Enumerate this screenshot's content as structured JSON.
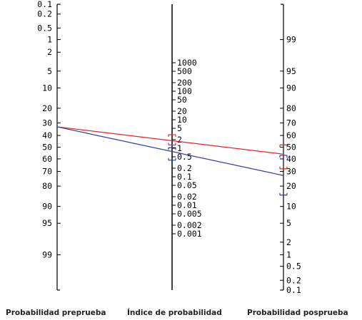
{
  "axes": {
    "pretest": {
      "title": "Probabilidad preprueba",
      "ticks": [
        "0.1",
        "0.2",
        "0.5",
        "1",
        "2",
        "5",
        "10",
        "20",
        "30",
        "40",
        "50",
        "60",
        "70",
        "80",
        "90",
        "95",
        "99"
      ]
    },
    "likelihood": {
      "title": "Índice de probabilidad",
      "ticks": [
        "1000",
        "500",
        "200",
        "100",
        "50",
        "20",
        "10",
        "5",
        "2",
        "1",
        "0.5",
        "0.2",
        "0.1",
        "0.05",
        "0.02",
        "0.01",
        "0.005",
        "0.002",
        "0.001"
      ]
    },
    "posttest": {
      "title": "Probabilidad posprueba",
      "ticks": [
        "99",
        "95",
        "90",
        "80",
        "70",
        "60",
        "50",
        "40",
        "30",
        "20",
        "10",
        "5",
        "2",
        "1",
        "0.5",
        "0.2",
        "0.1"
      ]
    }
  },
  "lines": [
    {
      "color": "#e8202a",
      "pretest_probability": 33,
      "likelihood_ratio": 2.2,
      "likelihood_ci": [
        1.3,
        3.0
      ],
      "posttest_probability": 44,
      "posttest_ci": [
        32,
        52
      ]
    },
    {
      "color": "#2a3fa0",
      "pretest_probability": 33,
      "likelihood_ratio": 0.75,
      "likelihood_ci": [
        0.38,
        1.05
      ],
      "posttest_probability": 27,
      "posttest_ci": [
        15,
        43
      ]
    }
  ]
}
